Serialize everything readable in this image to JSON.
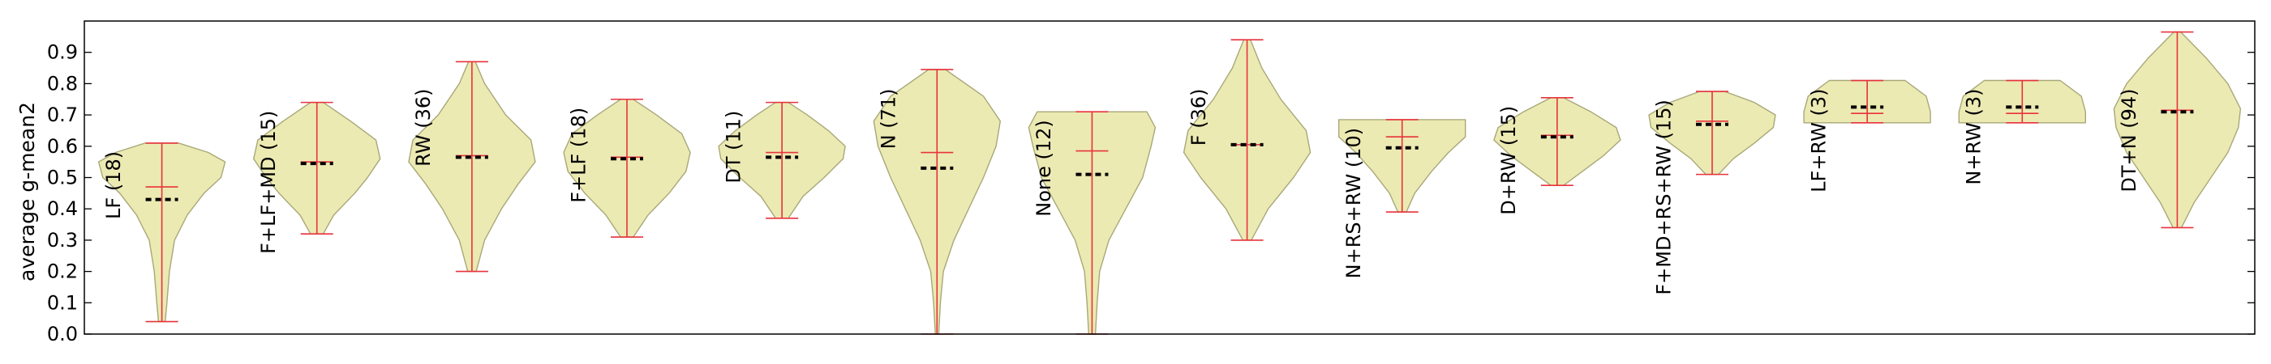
{
  "chart_data": {
    "type": "violin",
    "title": "",
    "xlabel": "",
    "ylabel": "average g-mean2",
    "ylim": [
      0.0,
      1.0
    ],
    "yticks": [
      0.0,
      0.1,
      0.2,
      0.3,
      0.4,
      0.5,
      0.6,
      0.7,
      0.8,
      0.9
    ],
    "grid": false,
    "colors": {
      "fill": "#eceab3",
      "outline": "#a8a878",
      "whisker": "#e8323c",
      "median": "#000000"
    },
    "categories": [
      {
        "label": "LF (18)",
        "min": 0.04,
        "max": 0.61,
        "mean": 0.47,
        "median": 0.43,
        "profile": [
          [
            0.04,
            0.008
          ],
          [
            0.1,
            0.012
          ],
          [
            0.2,
            0.018
          ],
          [
            0.3,
            0.03
          ],
          [
            0.38,
            0.06
          ],
          [
            0.45,
            0.1
          ],
          [
            0.5,
            0.14
          ],
          [
            0.55,
            0.15
          ],
          [
            0.58,
            0.11
          ],
          [
            0.61,
            0.04
          ]
        ]
      },
      {
        "label": "F+LF+MD (15)",
        "min": 0.32,
        "max": 0.74,
        "mean": 0.55,
        "median": 0.545,
        "profile": [
          [
            0.32,
            0.015
          ],
          [
            0.38,
            0.04
          ],
          [
            0.45,
            0.09
          ],
          [
            0.5,
            0.12
          ],
          [
            0.56,
            0.15
          ],
          [
            0.62,
            0.14
          ],
          [
            0.68,
            0.08
          ],
          [
            0.74,
            0.015
          ]
        ]
      },
      {
        "label": "RW (36)",
        "min": 0.2,
        "max": 0.87,
        "mean": 0.57,
        "median": 0.565,
        "profile": [
          [
            0.2,
            0.01
          ],
          [
            0.3,
            0.03
          ],
          [
            0.4,
            0.07
          ],
          [
            0.48,
            0.11
          ],
          [
            0.55,
            0.15
          ],
          [
            0.62,
            0.14
          ],
          [
            0.7,
            0.08
          ],
          [
            0.8,
            0.03
          ],
          [
            0.87,
            0.008
          ]
        ]
      },
      {
        "label": "F+LF (18)",
        "min": 0.31,
        "max": 0.75,
        "mean": 0.565,
        "median": 0.56,
        "profile": [
          [
            0.31,
            0.015
          ],
          [
            0.38,
            0.05
          ],
          [
            0.45,
            0.1
          ],
          [
            0.52,
            0.14
          ],
          [
            0.58,
            0.15
          ],
          [
            0.64,
            0.13
          ],
          [
            0.7,
            0.07
          ],
          [
            0.75,
            0.015
          ]
        ]
      },
      {
        "label": "DT (11)",
        "min": 0.37,
        "max": 0.74,
        "mean": 0.58,
        "median": 0.565,
        "profile": [
          [
            0.37,
            0.015
          ],
          [
            0.44,
            0.05
          ],
          [
            0.5,
            0.1
          ],
          [
            0.56,
            0.145
          ],
          [
            0.6,
            0.15
          ],
          [
            0.65,
            0.11
          ],
          [
            0.7,
            0.06
          ],
          [
            0.74,
            0.015
          ]
        ]
      },
      {
        "label": "N (71)",
        "min": 0.0,
        "max": 0.845,
        "mean": 0.58,
        "median": 0.53,
        "profile": [
          [
            0.0,
            0.004
          ],
          [
            0.1,
            0.008
          ],
          [
            0.2,
            0.015
          ],
          [
            0.3,
            0.04
          ],
          [
            0.4,
            0.075
          ],
          [
            0.5,
            0.11
          ],
          [
            0.6,
            0.14
          ],
          [
            0.68,
            0.15
          ],
          [
            0.76,
            0.11
          ],
          [
            0.845,
            0.02
          ]
        ]
      },
      {
        "label": "None (12)",
        "min": 0.0,
        "max": 0.71,
        "mean": 0.585,
        "median": 0.51,
        "profile": [
          [
            0.0,
            0.008
          ],
          [
            0.1,
            0.012
          ],
          [
            0.2,
            0.018
          ],
          [
            0.3,
            0.04
          ],
          [
            0.4,
            0.08
          ],
          [
            0.5,
            0.12
          ],
          [
            0.6,
            0.14
          ],
          [
            0.66,
            0.15
          ],
          [
            0.71,
            0.13
          ]
        ]
      },
      {
        "label": "F (36)",
        "min": 0.3,
        "max": 0.94,
        "mean": 0.605,
        "median": 0.605,
        "profile": [
          [
            0.3,
            0.01
          ],
          [
            0.4,
            0.05
          ],
          [
            0.5,
            0.11
          ],
          [
            0.58,
            0.15
          ],
          [
            0.65,
            0.14
          ],
          [
            0.75,
            0.08
          ],
          [
            0.85,
            0.035
          ],
          [
            0.94,
            0.008
          ]
        ]
      },
      {
        "label": "N+RS+RW (10)",
        "min": 0.39,
        "max": 0.685,
        "mean": 0.63,
        "median": 0.595,
        "profile": [
          [
            0.39,
            0.01
          ],
          [
            0.45,
            0.03
          ],
          [
            0.52,
            0.07
          ],
          [
            0.58,
            0.11
          ],
          [
            0.63,
            0.15
          ],
          [
            0.66,
            0.15
          ],
          [
            0.685,
            0.15
          ]
        ]
      },
      {
        "label": "D+RW (15)",
        "min": 0.475,
        "max": 0.755,
        "mean": 0.635,
        "median": 0.63,
        "profile": [
          [
            0.475,
            0.015
          ],
          [
            0.52,
            0.06
          ],
          [
            0.57,
            0.11
          ],
          [
            0.62,
            0.15
          ],
          [
            0.66,
            0.14
          ],
          [
            0.71,
            0.08
          ],
          [
            0.755,
            0.015
          ]
        ]
      },
      {
        "label": "F+MD+RS+RW (15)",
        "min": 0.51,
        "max": 0.775,
        "mean": 0.68,
        "median": 0.67,
        "profile": [
          [
            0.51,
            0.015
          ],
          [
            0.56,
            0.05
          ],
          [
            0.61,
            0.1
          ],
          [
            0.66,
            0.145
          ],
          [
            0.7,
            0.15
          ],
          [
            0.74,
            0.1
          ],
          [
            0.775,
            0.03
          ]
        ]
      },
      {
        "label": "LF+RW (3)",
        "min": 0.675,
        "max": 0.81,
        "mean": 0.705,
        "median": 0.725,
        "profile": [
          [
            0.675,
            0.15
          ],
          [
            0.71,
            0.15
          ],
          [
            0.76,
            0.14
          ],
          [
            0.79,
            0.11
          ],
          [
            0.81,
            0.09
          ]
        ]
      },
      {
        "label": "N+RW (3)",
        "min": 0.675,
        "max": 0.81,
        "mean": 0.705,
        "median": 0.725,
        "profile": [
          [
            0.675,
            0.15
          ],
          [
            0.71,
            0.15
          ],
          [
            0.76,
            0.14
          ],
          [
            0.79,
            0.11
          ],
          [
            0.81,
            0.09
          ]
        ]
      },
      {
        "label": "DT+N (94)",
        "min": 0.34,
        "max": 0.965,
        "mean": 0.715,
        "median": 0.71,
        "profile": [
          [
            0.34,
            0.01
          ],
          [
            0.42,
            0.04
          ],
          [
            0.5,
            0.08
          ],
          [
            0.58,
            0.12
          ],
          [
            0.66,
            0.145
          ],
          [
            0.72,
            0.15
          ],
          [
            0.8,
            0.12
          ],
          [
            0.88,
            0.07
          ],
          [
            0.965,
            0.008
          ]
        ]
      }
    ]
  }
}
